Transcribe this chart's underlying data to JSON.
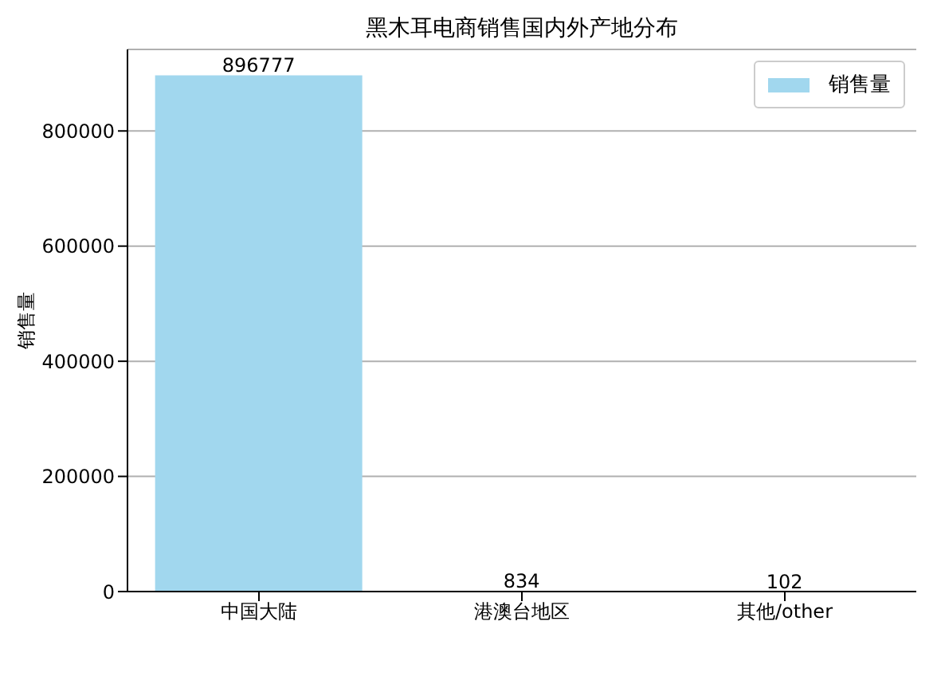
{
  "chart_data": {
    "type": "bar",
    "title": "黑木耳电商销售国内外产地分布",
    "ylabel": "销售量",
    "categories": [
      "中国大陆",
      "港澳台地区",
      "其他/other"
    ],
    "series": [
      {
        "name": "销售量",
        "color": "#a1d7ee",
        "values": [
          896777,
          834,
          102
        ]
      }
    ],
    "ylim": [
      0,
      941616
    ],
    "yticks": [
      0,
      200000,
      400000,
      600000,
      800000
    ],
    "grid": "y",
    "legend": "top right",
    "data_labels": true
  }
}
